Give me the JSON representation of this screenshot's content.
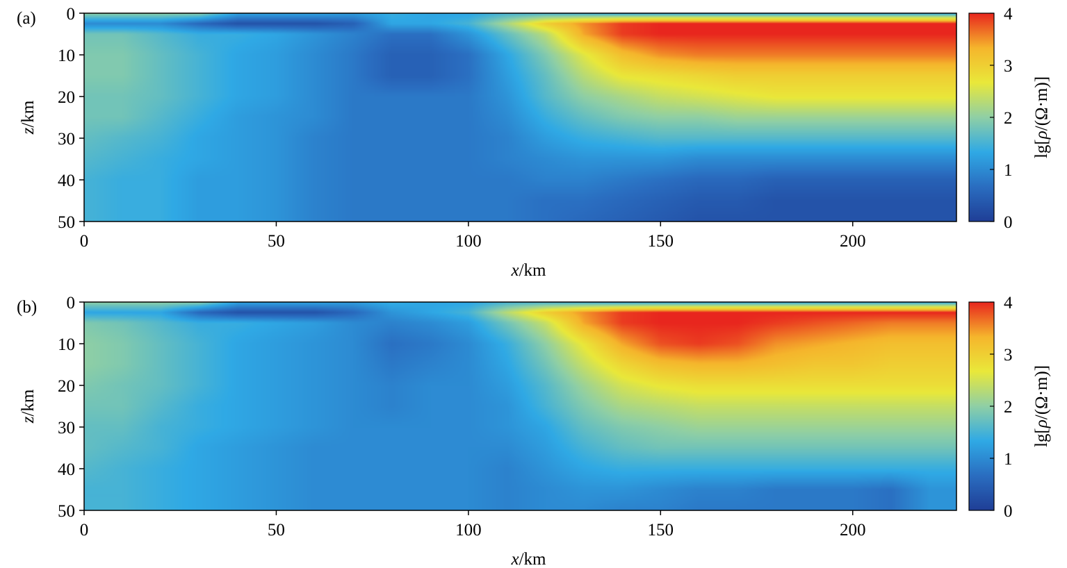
{
  "figure": {
    "panels": [
      {
        "label": "(a)",
        "xlabel_var": "x",
        "xlabel_unit": "/km",
        "ylabel_var": "z",
        "ylabel_unit": "/km",
        "cbar_label_pre": "lg[",
        "cbar_label_var": "ρ",
        "cbar_label_post": "/(Ω·m)]"
      },
      {
        "label": "(b)",
        "xlabel_var": "x",
        "xlabel_unit": "/km",
        "ylabel_var": "z",
        "ylabel_unit": "/km",
        "cbar_label_pre": "lg[",
        "cbar_label_var": "ρ",
        "cbar_label_post": "/(Ω·m)]"
      }
    ]
  },
  "chart_data": [
    {
      "type": "heatmap",
      "panel": "(a)",
      "xlabel": "x/km",
      "ylabel": "z/km",
      "colorbar_label": "lg[ρ/(Ω·m)]",
      "xlim": [
        0,
        227
      ],
      "ylim": [
        0,
        50
      ],
      "y_inverted": true,
      "xticks": [
        0,
        50,
        100,
        150,
        200
      ],
      "yticks": [
        0,
        10,
        20,
        30,
        40,
        50
      ],
      "colorbar_ticks": [
        0,
        1,
        2,
        3,
        4
      ],
      "colorbar_range": [
        0,
        4
      ],
      "colormap": [
        "#1f3e96",
        "#2a6dc0",
        "#2fa9e5",
        "#8fcfa5",
        "#e9e83a",
        "#f5b52c",
        "#e8261e"
      ],
      "x": [
        0,
        10,
        20,
        30,
        40,
        50,
        60,
        70,
        80,
        90,
        100,
        110,
        120,
        130,
        140,
        150,
        160,
        170,
        180,
        190,
        200,
        210,
        220,
        227
      ],
      "z": [
        0,
        2.5,
        5,
        10,
        15,
        20,
        25,
        30,
        35,
        40,
        45,
        50
      ],
      "values": [
        [
          2.0,
          2.0,
          2.0,
          2.0,
          1.3,
          1.3,
          1.3,
          1.2,
          1.4,
          1.3,
          1.3,
          1.5,
          1.5,
          1.4,
          1.3,
          1.3,
          1.3,
          1.3,
          1.3,
          1.3,
          1.3,
          1.3,
          1.3,
          1.3
        ],
        [
          1.0,
          1.0,
          1.0,
          0.6,
          0.3,
          0.3,
          0.3,
          0.5,
          1.3,
          1.3,
          1.5,
          2.2,
          3.0,
          3.5,
          3.9,
          4.0,
          4.0,
          4.0,
          4.0,
          4.0,
          4.0,
          4.0,
          4.0,
          4.0
        ],
        [
          1.8,
          1.8,
          1.6,
          1.4,
          1.4,
          1.3,
          1.1,
          0.9,
          0.7,
          0.7,
          1.1,
          1.7,
          2.3,
          3.4,
          3.9,
          4.0,
          4.0,
          4.0,
          4.0,
          4.0,
          4.0,
          4.0,
          4.0,
          4.0
        ],
        [
          1.9,
          1.9,
          1.7,
          1.5,
          1.3,
          1.2,
          1.0,
          0.8,
          0.5,
          0.5,
          0.7,
          1.3,
          1.9,
          2.6,
          3.2,
          3.5,
          3.6,
          3.6,
          3.6,
          3.6,
          3.6,
          3.6,
          3.6,
          3.6
        ],
        [
          1.9,
          1.9,
          1.7,
          1.5,
          1.3,
          1.2,
          1.0,
          0.8,
          0.5,
          0.5,
          0.7,
          1.2,
          1.7,
          2.3,
          2.7,
          2.8,
          2.9,
          3.0,
          3.0,
          3.0,
          3.0,
          3.0,
          3.0,
          3.0
        ],
        [
          1.8,
          1.8,
          1.7,
          1.5,
          1.3,
          1.2,
          1.0,
          0.8,
          0.8,
          0.8,
          0.8,
          1.1,
          1.6,
          2.0,
          2.2,
          2.4,
          2.5,
          2.6,
          2.7,
          2.7,
          2.7,
          2.7,
          2.7,
          2.7
        ],
        [
          1.8,
          1.8,
          1.6,
          1.4,
          1.2,
          1.1,
          1.0,
          0.8,
          0.8,
          0.8,
          0.8,
          1.0,
          1.4,
          1.7,
          1.9,
          2.0,
          2.0,
          2.1,
          2.1,
          2.1,
          2.1,
          2.1,
          2.1,
          2.1
        ],
        [
          1.7,
          1.6,
          1.5,
          1.3,
          1.2,
          1.1,
          0.9,
          0.8,
          0.8,
          0.8,
          0.8,
          0.9,
          1.2,
          1.4,
          1.5,
          1.6,
          1.6,
          1.6,
          1.6,
          1.6,
          1.6,
          1.6,
          1.6,
          1.6
        ],
        [
          1.6,
          1.5,
          1.4,
          1.3,
          1.2,
          1.1,
          0.9,
          0.8,
          0.8,
          0.8,
          0.8,
          0.9,
          1.0,
          1.1,
          1.1,
          1.1,
          1.0,
          1.0,
          1.0,
          1.0,
          1.0,
          1.0,
          1.0,
          1.0
        ],
        [
          1.5,
          1.4,
          1.4,
          1.2,
          1.2,
          1.1,
          0.9,
          0.8,
          0.8,
          0.8,
          0.8,
          0.8,
          0.9,
          0.9,
          0.8,
          0.7,
          0.6,
          0.6,
          0.5,
          0.5,
          0.5,
          0.5,
          0.5,
          0.5
        ],
        [
          1.5,
          1.4,
          1.4,
          1.2,
          1.2,
          1.1,
          0.9,
          0.8,
          0.8,
          0.8,
          0.8,
          0.8,
          0.7,
          0.7,
          0.6,
          0.5,
          0.4,
          0.4,
          0.3,
          0.3,
          0.3,
          0.3,
          0.3,
          0.3
        ],
        [
          1.5,
          1.4,
          1.4,
          1.2,
          1.2,
          1.1,
          0.9,
          0.8,
          0.8,
          0.8,
          0.8,
          0.8,
          0.7,
          0.6,
          0.5,
          0.4,
          0.3,
          0.3,
          0.3,
          0.3,
          0.3,
          0.3,
          0.3,
          0.3
        ]
      ]
    },
    {
      "type": "heatmap",
      "panel": "(b)",
      "xlabel": "x/km",
      "ylabel": "z/km",
      "colorbar_label": "lg[ρ/(Ω·m)]",
      "xlim": [
        0,
        227
      ],
      "ylim": [
        0,
        50
      ],
      "y_inverted": true,
      "xticks": [
        0,
        50,
        100,
        150,
        200
      ],
      "yticks": [
        0,
        10,
        20,
        30,
        40,
        50
      ],
      "colorbar_ticks": [
        0,
        1,
        2,
        3,
        4
      ],
      "colorbar_range": [
        0,
        4
      ],
      "colormap": [
        "#1f3e96",
        "#2a6dc0",
        "#2fa9e5",
        "#8fcfa5",
        "#e9e83a",
        "#f5b52c",
        "#e8261e"
      ],
      "x": [
        0,
        10,
        20,
        30,
        40,
        50,
        60,
        70,
        80,
        90,
        100,
        110,
        120,
        130,
        140,
        150,
        160,
        170,
        180,
        190,
        200,
        210,
        220,
        227
      ],
      "z": [
        0,
        2.5,
        5,
        10,
        15,
        20,
        25,
        30,
        35,
        40,
        45,
        50
      ],
      "values": [
        [
          2.0,
          2.0,
          2.0,
          2.0,
          1.3,
          1.3,
          1.3,
          1.2,
          1.4,
          1.3,
          1.3,
          1.5,
          1.5,
          1.4,
          1.3,
          1.3,
          1.3,
          1.3,
          1.3,
          1.3,
          1.3,
          1.3,
          1.3,
          1.3
        ],
        [
          1.3,
          1.3,
          1.3,
          0.6,
          0.3,
          0.3,
          0.3,
          0.6,
          1.1,
          1.3,
          1.5,
          2.3,
          3.0,
          3.5,
          3.9,
          4.0,
          4.0,
          4.0,
          4.0,
          4.0,
          4.0,
          4.0,
          4.0,
          4.0
        ],
        [
          1.9,
          1.8,
          1.6,
          1.4,
          1.4,
          1.3,
          1.2,
          1.0,
          0.9,
          1.0,
          1.2,
          1.8,
          2.4,
          3.4,
          3.9,
          4.0,
          4.0,
          4.0,
          3.9,
          3.8,
          3.7,
          3.6,
          3.6,
          3.6
        ],
        [
          2.0,
          1.9,
          1.7,
          1.5,
          1.3,
          1.2,
          1.1,
          1.0,
          0.7,
          0.8,
          1.0,
          1.4,
          2.0,
          2.7,
          3.4,
          3.8,
          3.9,
          3.8,
          3.5,
          3.4,
          3.3,
          3.2,
          3.2,
          3.2
        ],
        [
          2.0,
          1.9,
          1.7,
          1.5,
          1.3,
          1.2,
          1.1,
          1.0,
          0.8,
          0.9,
          1.0,
          1.3,
          1.8,
          2.4,
          2.9,
          3.2,
          3.3,
          3.3,
          3.2,
          3.1,
          3.1,
          3.0,
          3.0,
          3.0
        ],
        [
          1.9,
          1.8,
          1.7,
          1.5,
          1.3,
          1.2,
          1.1,
          1.0,
          0.9,
          1.0,
          1.0,
          1.2,
          1.6,
          2.1,
          2.5,
          2.7,
          2.8,
          2.8,
          2.8,
          2.8,
          2.8,
          2.8,
          2.8,
          2.8
        ],
        [
          1.8,
          1.8,
          1.6,
          1.4,
          1.3,
          1.2,
          1.1,
          1.0,
          0.9,
          1.0,
          1.0,
          1.1,
          1.5,
          1.9,
          2.2,
          2.3,
          2.4,
          2.4,
          2.4,
          2.4,
          2.4,
          2.4,
          2.4,
          2.4
        ],
        [
          1.7,
          1.7,
          1.5,
          1.4,
          1.3,
          1.2,
          1.1,
          1.0,
          1.0,
          1.0,
          1.0,
          1.1,
          1.3,
          1.7,
          1.9,
          2.0,
          2.1,
          2.1,
          2.1,
          2.1,
          2.1,
          2.1,
          2.1,
          2.1
        ],
        [
          1.7,
          1.6,
          1.5,
          1.3,
          1.2,
          1.1,
          1.0,
          1.0,
          1.0,
          1.0,
          1.0,
          1.0,
          1.2,
          1.5,
          1.7,
          1.8,
          1.8,
          1.8,
          1.8,
          1.8,
          1.8,
          1.8,
          1.8,
          1.8
        ],
        [
          1.6,
          1.5,
          1.4,
          1.3,
          1.2,
          1.1,
          1.0,
          1.0,
          1.0,
          1.0,
          1.0,
          0.9,
          1.1,
          1.3,
          1.4,
          1.4,
          1.4,
          1.4,
          1.4,
          1.4,
          1.4,
          1.4,
          1.4,
          1.4
        ],
        [
          1.5,
          1.5,
          1.4,
          1.3,
          1.2,
          1.1,
          1.0,
          1.0,
          1.0,
          1.0,
          1.0,
          0.9,
          1.0,
          1.1,
          1.1,
          1.0,
          0.9,
          0.9,
          0.8,
          0.8,
          0.8,
          0.7,
          1.1,
          1.1
        ],
        [
          1.5,
          1.5,
          1.4,
          1.3,
          1.2,
          1.1,
          1.0,
          1.0,
          1.0,
          1.0,
          1.0,
          0.9,
          1.0,
          1.0,
          0.9,
          0.9,
          0.8,
          0.8,
          0.8,
          0.8,
          0.8,
          0.7,
          1.1,
          1.1
        ]
      ]
    }
  ]
}
